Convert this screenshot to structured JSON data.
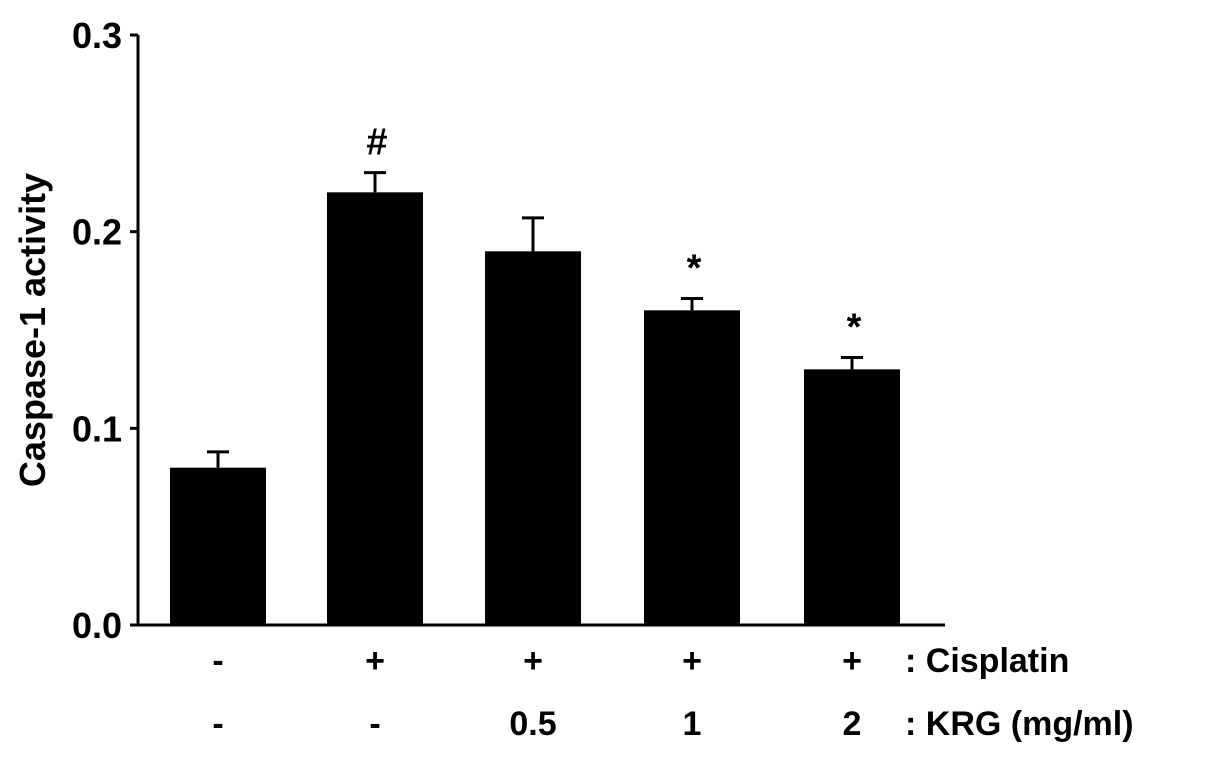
{
  "chart_data": {
    "type": "bar",
    "ylabel": "Caspase-1 activity",
    "ylim": [
      0.0,
      0.3
    ],
    "yticks": [
      "0.0",
      "0.1",
      "0.2",
      "0.3"
    ],
    "bars": [
      {
        "value": 0.08,
        "error": 0.008,
        "annotation": "",
        "cisplatin": "-",
        "krg": "-"
      },
      {
        "value": 0.22,
        "error": 0.01,
        "annotation": "#",
        "cisplatin": "+",
        "krg": "-"
      },
      {
        "value": 0.19,
        "error": 0.017,
        "annotation": "",
        "cisplatin": "+",
        "krg": "0.5"
      },
      {
        "value": 0.16,
        "error": 0.006,
        "annotation": "*",
        "cisplatin": "+",
        "krg": "1"
      },
      {
        "value": 0.13,
        "error": 0.006,
        "annotation": "*",
        "cisplatin": "+",
        "krg": "2"
      }
    ],
    "row_labels": {
      "cisplatin": ": Cisplatin",
      "krg": ": KRG (mg/ml)"
    },
    "bar_color": "#000000"
  }
}
